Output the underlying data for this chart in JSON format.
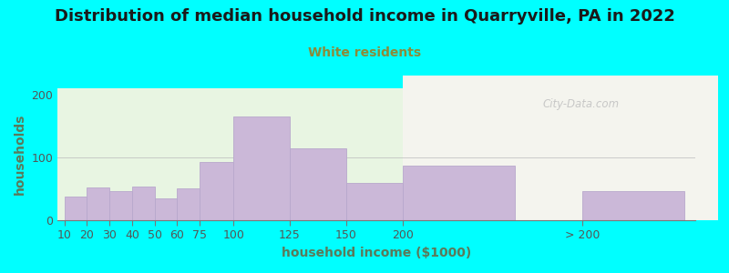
{
  "title": "Distribution of median household income in Quarryville, PA in 2022",
  "subtitle": "White residents",
  "xlabel": "household income ($1000)",
  "ylabel": "households",
  "background_color": "#00FFFF",
  "plot_bg_color_left": "#e8f5e2",
  "plot_bg_color_right": "#f4f4ee",
  "bar_color": "#cbb8d8",
  "bar_edge_color": "#b8a8cc",
  "categories": [
    "10",
    "20",
    "30",
    "40",
    "50",
    "60",
    "75",
    "100",
    "125",
    "150",
    "200",
    "> 200"
  ],
  "values": [
    37,
    52,
    47,
    53,
    35,
    50,
    93,
    165,
    115,
    60,
    87,
    47
  ],
  "ylim": [
    0,
    210
  ],
  "yticks": [
    0,
    100,
    200
  ],
  "title_fontsize": 13,
  "subtitle_fontsize": 10,
  "subtitle_color": "#8B8B3A",
  "axis_label_fontsize": 10,
  "axis_label_color": "#5a7a5a",
  "tick_color": "#555555",
  "watermark": "City-Data.com"
}
